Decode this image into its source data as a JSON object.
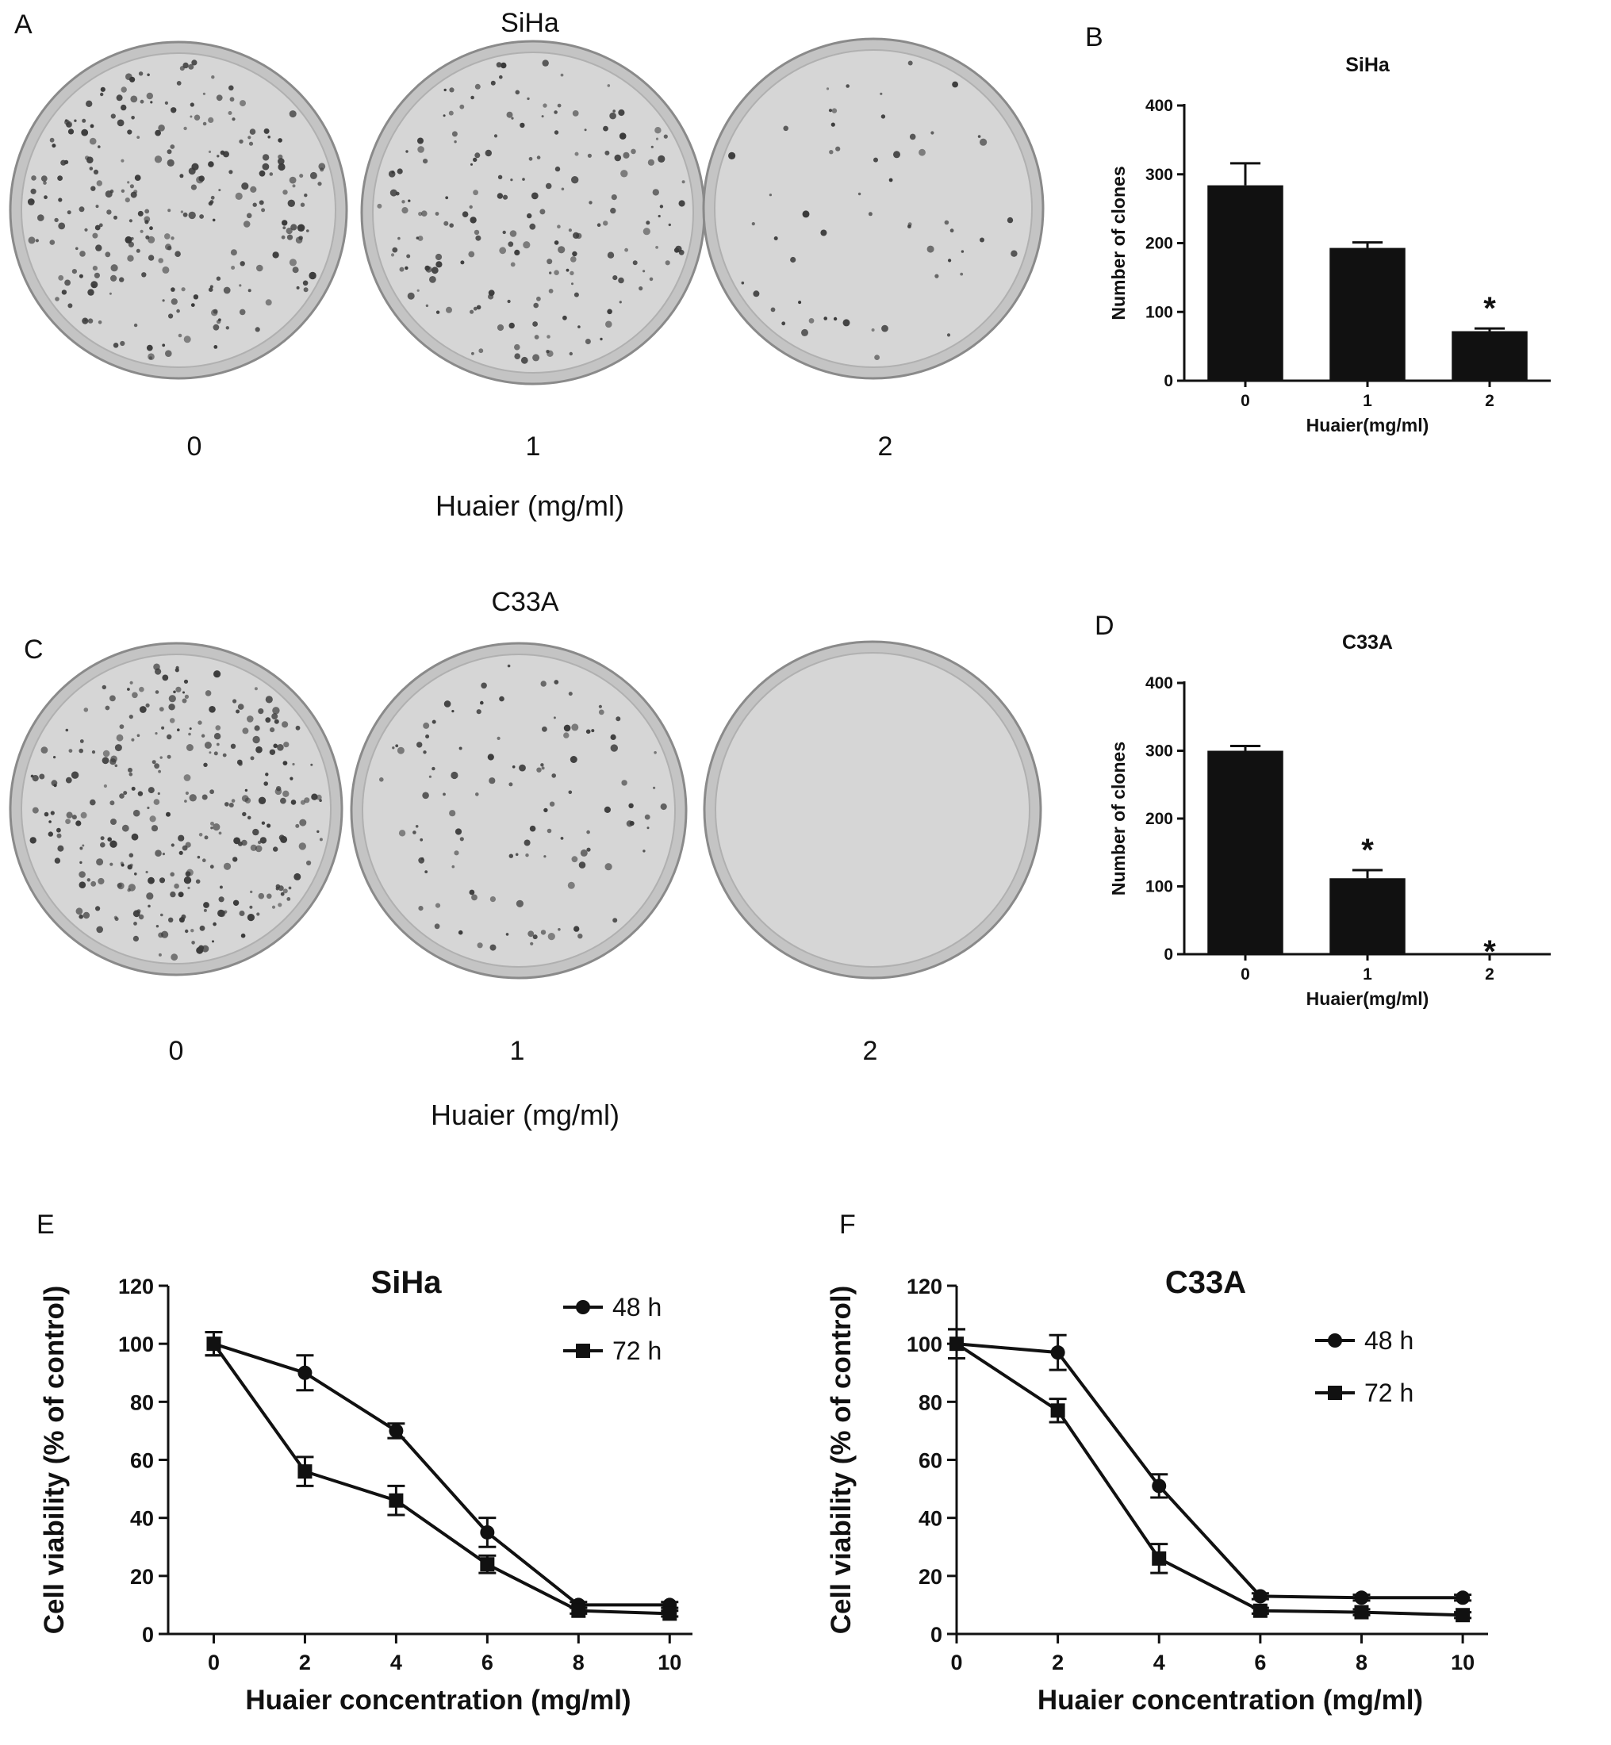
{
  "panel_A": {
    "letter": "A",
    "title": "SiHa",
    "doses": [
      "0",
      "1",
      "2"
    ],
    "xlabel": "Huaier (mg/ml)"
  },
  "panel_C": {
    "letter": "C",
    "title": "C33A",
    "doses": [
      "0",
      "1",
      "2"
    ],
    "xlabel": "Huaier (mg/ml)"
  },
  "colors": {
    "ink": "#111111",
    "plate_face": "#d6d6d6",
    "plate_rim": "#8a8a8a",
    "colony": "#3a3a3a"
  },
  "chart_data": [
    {
      "panel": "B",
      "type": "bar",
      "title": "SiHa",
      "xlabel": "Huaier(mg/ml)",
      "ylabel": "Number of clones",
      "categories": [
        "0",
        "1",
        "2"
      ],
      "values": [
        284,
        193,
        72
      ],
      "errors": [
        32,
        8,
        4
      ],
      "annotations": [
        "",
        "",
        "*"
      ],
      "ylim": [
        0,
        400
      ],
      "yticks": [
        0,
        100,
        200,
        300,
        400
      ],
      "color": "#111111"
    },
    {
      "panel": "D",
      "type": "bar",
      "title": "C33A",
      "xlabel": "Huaier(mg/ml)",
      "ylabel": "Number of clones",
      "categories": [
        "0",
        "1",
        "2"
      ],
      "values": [
        300,
        112,
        0
      ],
      "errors": [
        7,
        12,
        0
      ],
      "annotations": [
        "",
        "*",
        "*"
      ],
      "ylim": [
        0,
        400
      ],
      "yticks": [
        0,
        100,
        200,
        300,
        400
      ],
      "color": "#111111"
    },
    {
      "panel": "E",
      "type": "line",
      "title": "SiHa",
      "xlabel": "Huaier concentration (mg/ml)",
      "ylabel": "Cell viability (% of control)",
      "x": [
        0,
        2,
        4,
        6,
        8,
        10
      ],
      "xlim": [
        -1,
        10.5
      ],
      "ylim": [
        0,
        120
      ],
      "xticks": [
        0,
        2,
        4,
        6,
        8,
        10
      ],
      "yticks": [
        0,
        20,
        40,
        60,
        80,
        100,
        120
      ],
      "legend": "top-right",
      "series": [
        {
          "name": "48 h",
          "marker": "circle",
          "values": [
            100,
            90,
            70,
            35,
            10,
            10
          ],
          "errors": [
            4,
            6,
            2.5,
            5,
            1,
            1
          ]
        },
        {
          "name": "72 h",
          "marker": "square",
          "values": [
            100,
            56,
            46,
            24,
            8,
            7
          ],
          "errors": [
            4,
            5,
            5,
            3,
            1,
            1
          ]
        }
      ]
    },
    {
      "panel": "F",
      "type": "line",
      "title": "C33A",
      "xlabel": "Huaier concentration (mg/ml)",
      "ylabel": "Cell viability (% of control)",
      "x": [
        0,
        2,
        4,
        6,
        8,
        10
      ],
      "xlim": [
        0,
        10.5
      ],
      "ylim": [
        0,
        120
      ],
      "xticks": [
        0,
        2,
        4,
        6,
        8,
        10
      ],
      "yticks": [
        0,
        20,
        40,
        60,
        80,
        100,
        120
      ],
      "legend": "top-right",
      "series": [
        {
          "name": "48 h",
          "marker": "circle",
          "values": [
            100,
            97,
            51,
            13,
            12.5,
            12.5
          ],
          "errors": [
            5,
            6,
            4,
            1,
            1,
            1
          ]
        },
        {
          "name": "72 h",
          "marker": "square",
          "values": [
            100,
            77,
            26,
            8,
            7.5,
            6.5
          ],
          "errors": [
            5,
            4,
            5,
            1,
            1,
            1
          ]
        }
      ]
    }
  ]
}
